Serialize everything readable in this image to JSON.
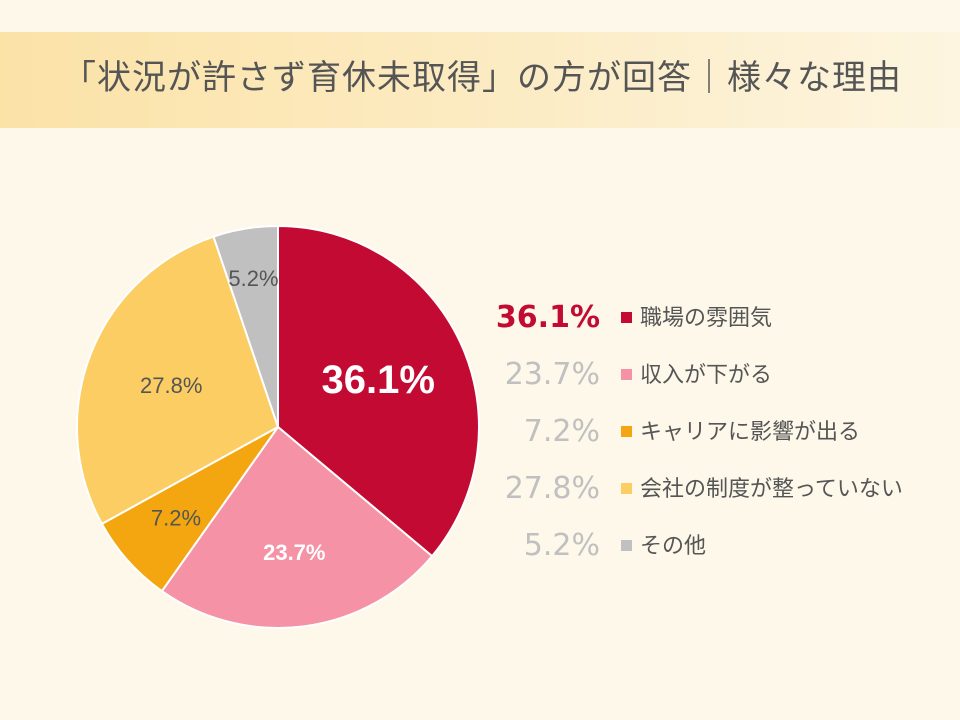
{
  "title": "「状況が許さず育休未取得」の方が回答｜様々な理由",
  "chart_data": {
    "type": "pie",
    "categories": [
      "職場の雰囲気",
      "収入が下がる",
      "キャリアに影響が出る",
      "会社の制度が整っていない",
      "その他"
    ],
    "values": [
      36.1,
      23.7,
      7.2,
      27.8,
      5.2
    ],
    "unit": "%",
    "colors": [
      "#c20a32",
      "#f592a5",
      "#f3a60f",
      "#fbcd63",
      "#c0c0c0"
    ],
    "slice_labels": [
      "36.1%",
      "23.7%",
      "7.2%",
      "27.8%",
      "5.2%"
    ],
    "start_angle": "12 o'clock",
    "direction": "clockwise",
    "legend": [
      {
        "pct": "36.1%",
        "label": "職場の雰囲気",
        "highlight": true
      },
      {
        "pct": "23.7%",
        "label": "収入が下がる"
      },
      {
        "pct": "7.2%",
        "label": "キャリアに影響が出る"
      },
      {
        "pct": "27.8%",
        "label": "会社の制度が整っていない"
      },
      {
        "pct": "5.2%",
        "label": "その他"
      }
    ],
    "legend_placement": "right"
  }
}
